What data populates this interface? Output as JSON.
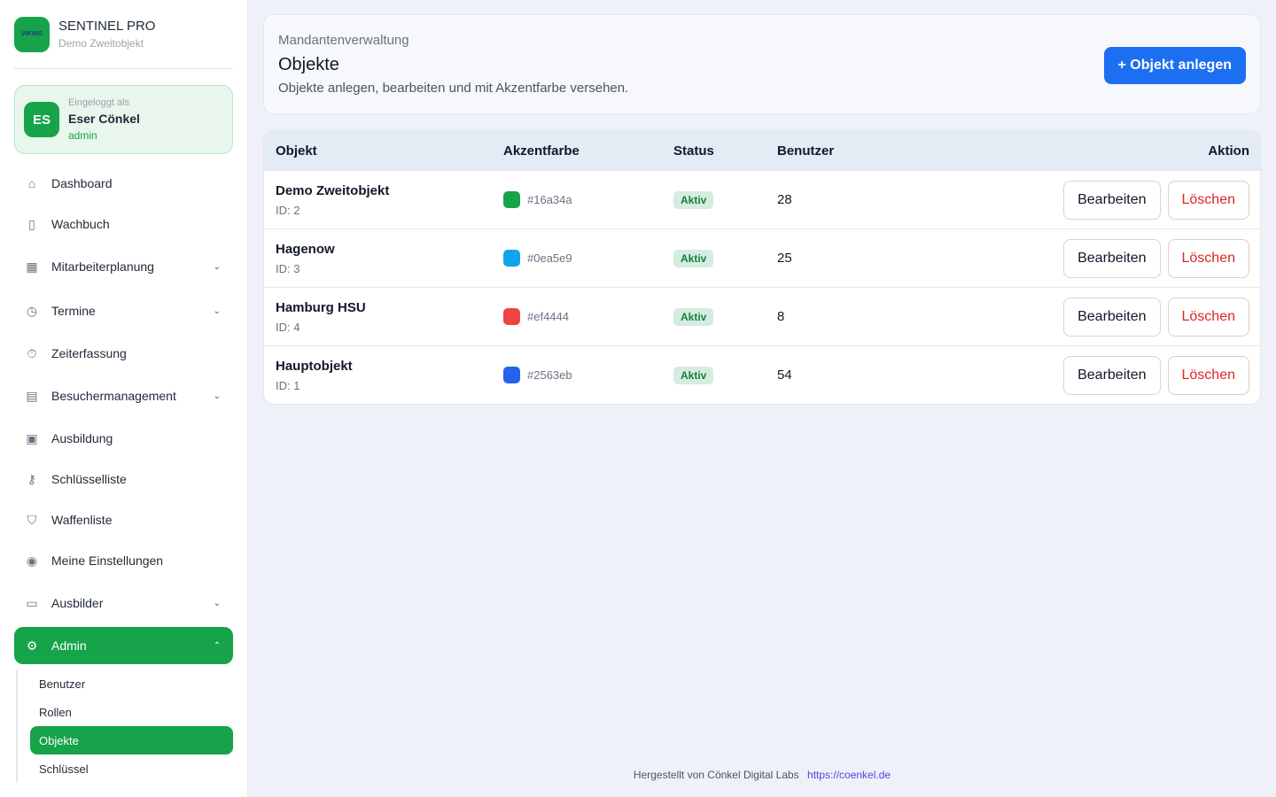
{
  "brand": {
    "name": "SENTINEL PRO",
    "subtitle": "Demo Zweitobjekt",
    "logo_text": "VIKING"
  },
  "user": {
    "label": "Eingeloggt als",
    "name": "Eser Cönkel",
    "role": "admin",
    "initials": "ES"
  },
  "nav": [
    {
      "label": "Dashboard",
      "icon": "home-icon",
      "glyph": "⌂"
    },
    {
      "label": "Wachbuch",
      "icon": "book-icon",
      "glyph": "▯"
    },
    {
      "label": "Mitarbeiterplanung",
      "icon": "calendar-icon",
      "glyph": "▦",
      "chevron": true
    },
    {
      "label": "Termine",
      "icon": "clock-icon",
      "glyph": "◷",
      "chevron": true
    },
    {
      "label": "Zeiterfassung",
      "icon": "timer-icon",
      "glyph": "⏱"
    },
    {
      "label": "Besuchermanagement",
      "icon": "id-card-icon",
      "glyph": "▤",
      "chevron": true
    },
    {
      "label": "Ausbildung",
      "icon": "gift-icon",
      "glyph": "▣"
    },
    {
      "label": "Schlüsselliste",
      "icon": "key-icon",
      "glyph": "⚷"
    },
    {
      "label": "Waffenliste",
      "icon": "shield-icon",
      "glyph": "⛉"
    },
    {
      "label": "Meine Einstellungen",
      "icon": "user-circle-icon",
      "glyph": "◉"
    },
    {
      "label": "Ausbilder",
      "icon": "presentation-icon",
      "glyph": "▭",
      "chevron": true
    }
  ],
  "admin": {
    "label": "Admin",
    "icon": "gear-icon",
    "glyph": "⚙",
    "sub": [
      "Benutzer",
      "Rollen",
      "Objekte",
      "Schlüssel"
    ],
    "active": "Objekte"
  },
  "header": {
    "kicker": "Mandantenverwaltung",
    "title": "Objekte",
    "description": "Objekte anlegen, bearbeiten und mit Akzentfarbe versehen.",
    "add_button": "+ Objekt anlegen"
  },
  "table": {
    "columns": [
      "Objekt",
      "Akzentfarbe",
      "Status",
      "Benutzer",
      "Aktion"
    ],
    "edit_label": "Bearbeiten",
    "delete_label": "Löschen",
    "rows": [
      {
        "name": "Demo Zweitobjekt",
        "id": "ID: 2",
        "color": "#16a34a",
        "status": "Aktiv",
        "users": "28"
      },
      {
        "name": "Hagenow",
        "id": "ID: 3",
        "color": "#0ea5e9",
        "status": "Aktiv",
        "users": "25"
      },
      {
        "name": "Hamburg HSU",
        "id": "ID: 4",
        "color": "#ef4444",
        "status": "Aktiv",
        "users": "8"
      },
      {
        "name": "Hauptobjekt",
        "id": "ID: 1",
        "color": "#2563eb",
        "status": "Aktiv",
        "users": "54"
      }
    ]
  },
  "footer": {
    "text": "Hergestellt von Cönkel Digital Labs",
    "link": "https://coenkel.de"
  }
}
